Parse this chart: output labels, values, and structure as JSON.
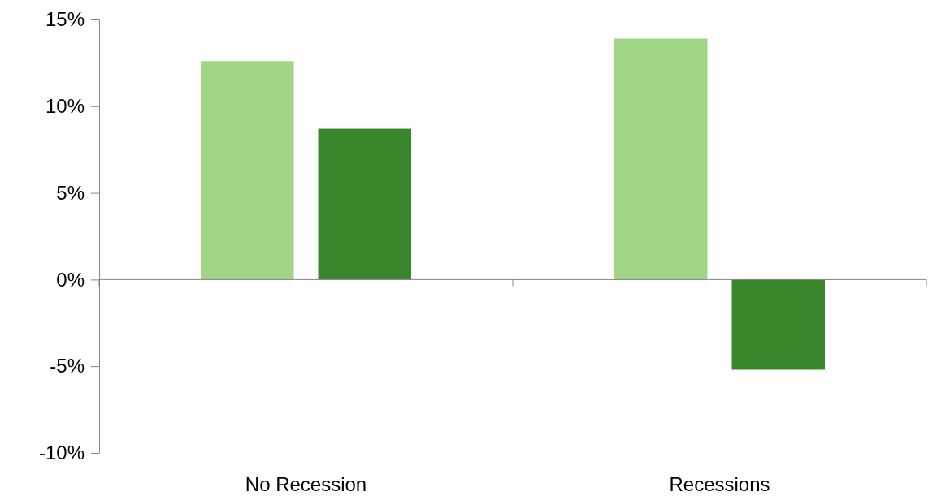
{
  "chart_data": {
    "type": "bar",
    "categories": [
      "No Recession",
      "Recessions"
    ],
    "series": [
      {
        "color": "#a1d586",
        "values": [
          12.6,
          13.9
        ]
      },
      {
        "color": "#38872a",
        "values": [
          8.7,
          -5.2
        ]
      }
    ],
    "ylim": [
      -10,
      15
    ],
    "yticks": [
      {
        "value": -10,
        "label": "-10%"
      },
      {
        "value": -5,
        "label": "-5%"
      },
      {
        "value": 0,
        "label": "0%"
      },
      {
        "value": 5,
        "label": "5%"
      },
      {
        "value": 10,
        "label": "10%"
      },
      {
        "value": 15,
        "label": "15%"
      }
    ],
    "tick_labels": true
  }
}
